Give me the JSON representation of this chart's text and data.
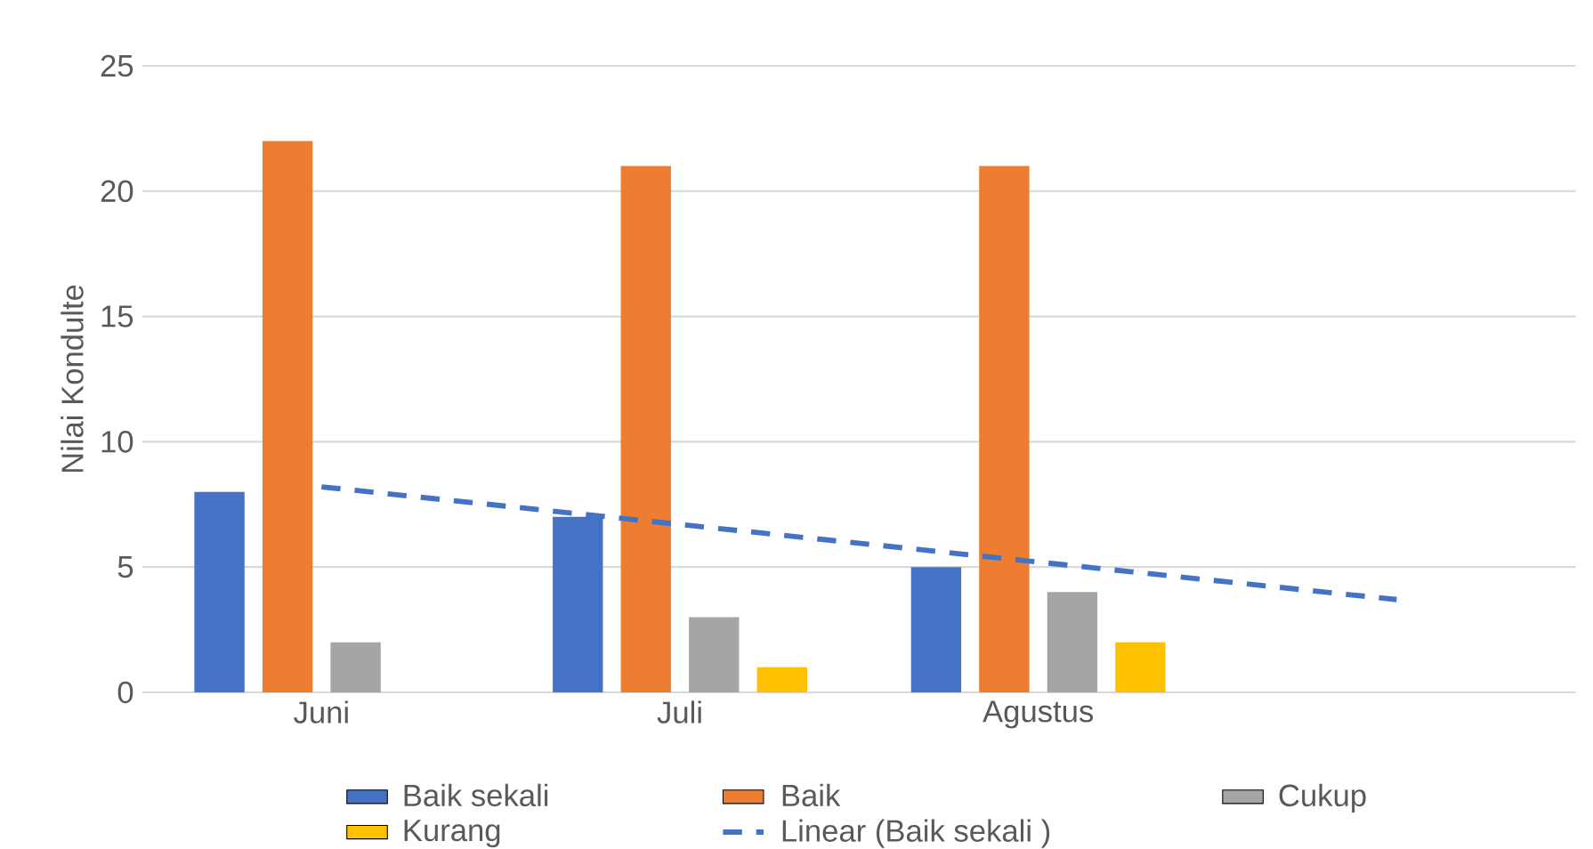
{
  "chart_data": {
    "type": "bar",
    "categories": [
      "Juni",
      "Juli",
      "Agustus",
      null
    ],
    "ylabel": "Nilai Kondulte",
    "ylim": [
      0,
      25
    ],
    "yticks": [
      0,
      5,
      10,
      15,
      20,
      25
    ],
    "grid": "y",
    "legend": "bottom",
    "series": [
      {
        "name": "Baik sekali",
        "color": "#4472c4",
        "values": [
          8,
          7,
          5,
          null
        ]
      },
      {
        "name": "Baik",
        "color": "#ed7d31",
        "values": [
          22,
          21,
          21,
          null
        ]
      },
      {
        "name": "Cukup",
        "color": "#a5a5a5",
        "values": [
          2,
          3,
          4,
          null
        ]
      },
      {
        "name": "Kurang",
        "color": "#ffc000",
        "values": [
          0,
          1,
          2,
          null
        ]
      },
      {
        "name": "Linear (Baik sekali )",
        "color": "#4472c4",
        "type": "line",
        "line_style": "dashed",
        "marker": "none",
        "values": [
          8.2,
          6.7,
          5.2,
          3.7
        ]
      }
    ]
  }
}
